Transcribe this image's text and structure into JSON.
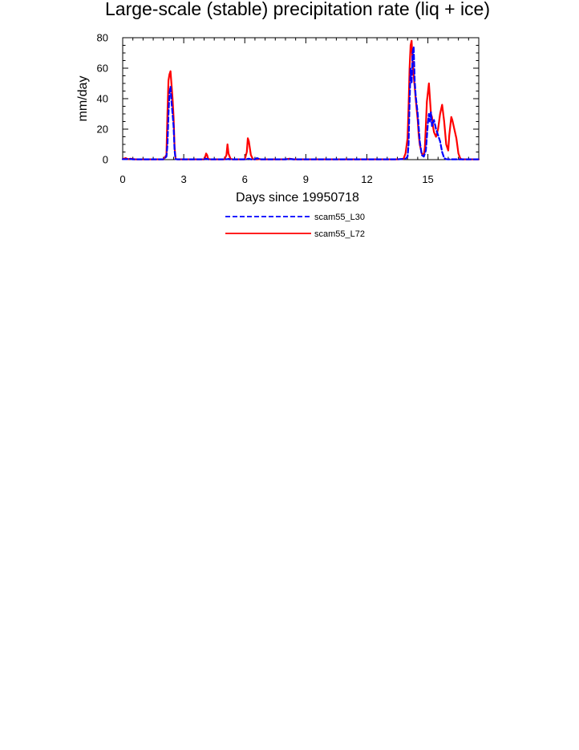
{
  "chart_data": {
    "type": "line",
    "title": "Large-scale (stable) precipitation rate (liq + ice)",
    "xlabel": "Days since 19950718",
    "ylabel": "mm/day",
    "xlim": [
      0,
      17.5
    ],
    "ylim": [
      0,
      80
    ],
    "x_ticks": [
      0,
      3,
      6,
      9,
      12,
      15
    ],
    "x_tick_labels": [
      "0",
      "3",
      "6",
      "9",
      "12",
      "15"
    ],
    "y_ticks": [
      0,
      20,
      40,
      60,
      80
    ],
    "y_tick_labels": [
      "0",
      "20",
      "40",
      "60",
      "80"
    ],
    "grid": false,
    "legend_position": "bottom",
    "series": [
      {
        "name": "scam55_L30",
        "color": "#0000ff",
        "dash": "dashed",
        "x": [
          0,
          0.2,
          0.3,
          0.5,
          1.0,
          2.0,
          2.15,
          2.2,
          2.25,
          2.3,
          2.35,
          2.4,
          2.45,
          2.5,
          2.55,
          2.6,
          2.7,
          4.0,
          4.1,
          4.2,
          4.3,
          5.0,
          5.15,
          5.2,
          5.25,
          5.4,
          6.0,
          6.1,
          6.2,
          6.3,
          6.5,
          6.6,
          6.7,
          6.8,
          8.0,
          8.2,
          8.4,
          13.5,
          13.9,
          14.0,
          14.05,
          14.1,
          14.15,
          14.2,
          14.25,
          14.3,
          14.35,
          14.4,
          14.5,
          14.6,
          14.7,
          14.8,
          14.9,
          14.95,
          15.0,
          15.05,
          15.1,
          15.15,
          15.2,
          15.3,
          15.4,
          15.5,
          15.6,
          15.7,
          15.8,
          15.9,
          16.0,
          17.5
        ],
        "y": [
          0.3,
          0.3,
          0.6,
          0.2,
          0.2,
          0.2,
          2,
          10,
          30,
          44,
          48,
          38,
          30,
          22,
          6,
          0.3,
          0.2,
          0.2,
          0.6,
          0.2,
          0.2,
          0.2,
          0.3,
          0.5,
          0.2,
          0.2,
          0.2,
          0.3,
          0.6,
          0.2,
          0.2,
          1,
          0.5,
          0.2,
          0.2,
          0.4,
          0.2,
          0.2,
          0.5,
          2,
          10,
          38,
          60,
          50,
          70,
          74,
          52,
          42,
          30,
          12,
          3,
          2,
          6,
          15,
          24,
          30,
          25,
          31,
          22,
          26,
          20,
          16,
          12,
          5,
          1,
          0.3,
          0.2,
          0.2
        ]
      },
      {
        "name": "scam55_L72",
        "color": "#ff0000",
        "dash": "solid",
        "x": [
          0,
          0.15,
          0.25,
          0.4,
          0.6,
          1.0,
          2.0,
          2.15,
          2.2,
          2.25,
          2.3,
          2.35,
          2.4,
          2.45,
          2.5,
          2.55,
          2.6,
          2.7,
          4.0,
          4.05,
          4.1,
          4.15,
          4.2,
          4.3,
          5.0,
          5.1,
          5.15,
          5.2,
          5.3,
          5.4,
          6.0,
          6.1,
          6.15,
          6.2,
          6.3,
          6.4,
          6.6,
          6.7,
          6.8,
          8.0,
          8.2,
          8.4,
          13.5,
          13.8,
          13.9,
          14.0,
          14.05,
          14.1,
          14.15,
          14.2,
          14.25,
          14.3,
          14.35,
          14.4,
          14.5,
          14.55,
          14.6,
          14.7,
          14.8,
          14.85,
          14.9,
          14.95,
          15.0,
          15.05,
          15.1,
          15.15,
          15.2,
          15.25,
          15.3,
          15.4,
          15.5,
          15.6,
          15.65,
          15.7,
          15.8,
          15.9,
          16.0,
          16.05,
          16.1,
          16.15,
          16.2,
          16.3,
          16.4,
          16.5,
          16.6,
          16.7,
          17.5
        ],
        "y": [
          0.3,
          1,
          0.3,
          0.6,
          0.2,
          0.2,
          0.2,
          3,
          30,
          52,
          56,
          58,
          49,
          40,
          28,
          8,
          0.4,
          0.2,
          0.2,
          1.5,
          4,
          3,
          0.5,
          0.2,
          0.2,
          3,
          10,
          4,
          0.5,
          0.2,
          0.2,
          5,
          14,
          12,
          3,
          0.3,
          0.2,
          0.4,
          0.2,
          0.2,
          0.6,
          0.2,
          0.2,
          0.5,
          4,
          14,
          34,
          60,
          75,
          78,
          63,
          55,
          48,
          40,
          26,
          16,
          10,
          4,
          3,
          8,
          22,
          38,
          44,
          50,
          40,
          30,
          28,
          22,
          18,
          15,
          20,
          30,
          33,
          36,
          25,
          10,
          6,
          16,
          22,
          28,
          26,
          20,
          14,
          4,
          0.5,
          0.2,
          0.2
        ]
      }
    ]
  }
}
